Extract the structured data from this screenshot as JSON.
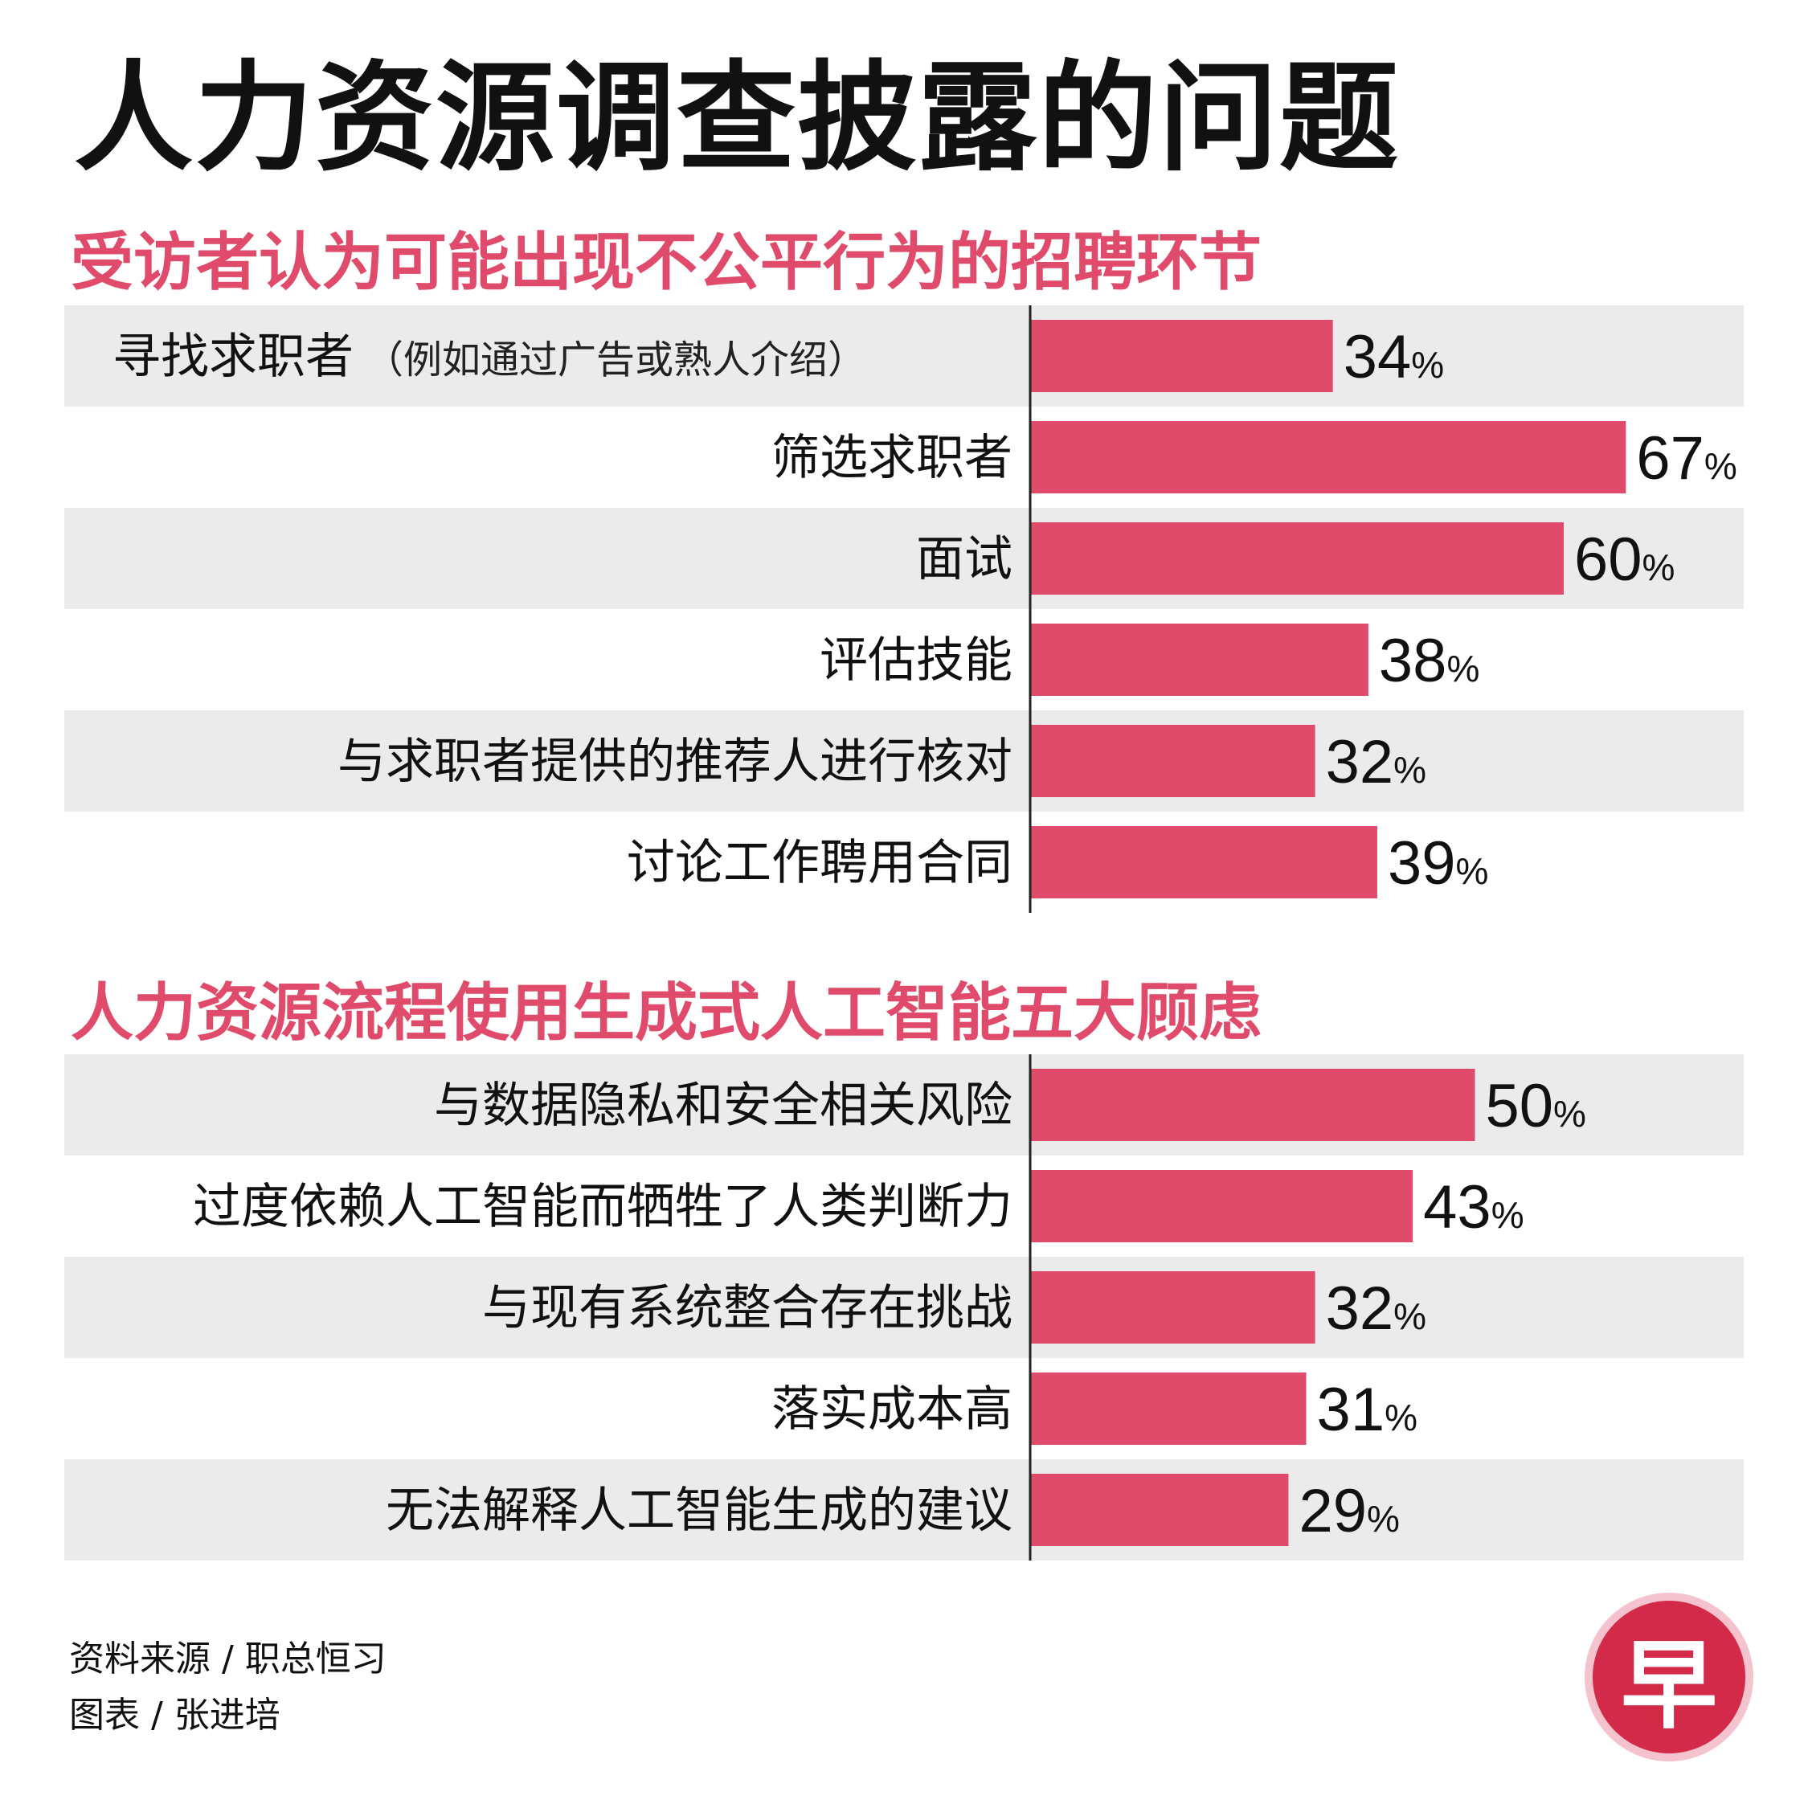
{
  "title": "人力资源调查披露的问题",
  "colors": {
    "bar": "#e04b6c",
    "accent": "#e04b6c",
    "row_band": "#ebebeb",
    "axis": "#222222",
    "logo_bg": "#d42a49",
    "logo_ring": "#f4c3cd"
  },
  "chart_data": [
    {
      "type": "bar",
      "orientation": "horizontal",
      "title": "受访者认为可能出现不公平行为的招聘环节",
      "categories": [
        {
          "label": "寻找求职者",
          "note": "（例如通过广告或熟人介绍）"
        },
        {
          "label": "筛选求职者"
        },
        {
          "label": "面试"
        },
        {
          "label": "评估技能"
        },
        {
          "label": "与求职者提供的推荐人进行核对"
        },
        {
          "label": "讨论工作聘用合同"
        }
      ],
      "values": [
        34,
        67,
        60,
        38,
        32,
        39
      ],
      "unit": "%",
      "xlim": [
        0,
        100
      ],
      "grid": false,
      "legend": "none"
    },
    {
      "type": "bar",
      "orientation": "horizontal",
      "title": "人力资源流程使用生成式人工智能五大顾虑",
      "categories": [
        {
          "label": "与数据隐私和安全相关风险"
        },
        {
          "label": "过度依赖人工智能而牺牲了人类判断力"
        },
        {
          "label": "与现有系统整合存在挑战"
        },
        {
          "label": "落实成本高"
        },
        {
          "label": "无法解释人工智能生成的建议"
        }
      ],
      "values": [
        50,
        43,
        32,
        31,
        29
      ],
      "unit": "%",
      "xlim": [
        0,
        100
      ],
      "grid": false,
      "legend": "none"
    }
  ],
  "footer": {
    "source": "资料来源 / 职总恒习",
    "credit": "图表 / 张进培"
  },
  "logo": {
    "char": "早",
    "icon": "zaobao-logo-icon"
  }
}
